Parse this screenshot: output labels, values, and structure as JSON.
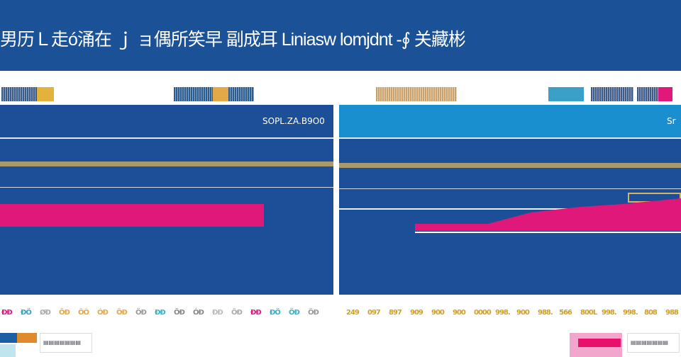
{
  "header": {
    "title": "男历Ｌ走ó涌在 ｊ ョ偶所笑早 副成耳 Liniasw lomjdnt -∮ 关藏彬"
  },
  "colors": {
    "header": "#1b5196",
    "panel": "#1d4f98",
    "panel_top_right": "#1a8fcf",
    "pink": "#e0187a",
    "gold": "#d9b35c"
  },
  "left_panel": {
    "value": "SOPL.ZA.B9O0"
  },
  "right_panel": {
    "value": "Sr"
  },
  "axis_left": [
    "ĐÐ",
    "ÐÖ",
    "ØÐ",
    "ÖÐ",
    "ÖÓ",
    "ÓÐ",
    "ÔÐ",
    "ÖÐ",
    "ĐÐ",
    "ÖÐ",
    "ÓÐ",
    "ÐÐ",
    "ÖÐ",
    "ÐÐ",
    "ÐÖ",
    "ÖÐ",
    "ÖÐ"
  ],
  "axis_right": [
    "249",
    "097",
    "897",
    "909",
    "900",
    "900",
    "0000",
    "998.",
    "900",
    "988.",
    "566",
    "800L",
    "998.",
    "998.",
    "808",
    "988"
  ],
  "legend": {
    "left_label": "▤▤▤▤▤▤▤",
    "right_label": "▤▤▤▤▤▤▤"
  }
}
